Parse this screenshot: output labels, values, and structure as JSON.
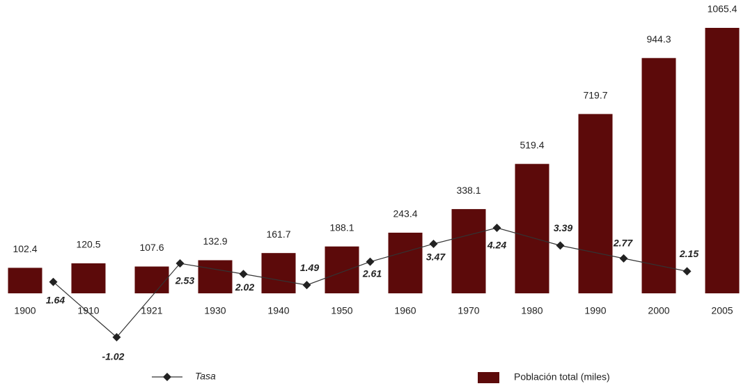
{
  "chart_data": {
    "type": "bar",
    "categories": [
      "1900",
      "1910",
      "1921",
      "1930",
      "1940",
      "1950",
      "1960",
      "1970",
      "1980",
      "1990",
      "2000",
      "2005"
    ],
    "series": [
      {
        "name": "Población total (miles)",
        "type": "bar",
        "color": "#5c0a0a",
        "values": [
          102.4,
          120.5,
          107.6,
          132.9,
          161.7,
          188.1,
          243.4,
          338.1,
          519.4,
          719.7,
          944.3,
          1065.4
        ]
      },
      {
        "name": "Tasa",
        "type": "line",
        "color": "#333333",
        "values": [
          null,
          1.64,
          -1.02,
          2.53,
          2.02,
          1.49,
          2.61,
          3.47,
          4.24,
          3.39,
          2.77,
          2.15
        ]
      }
    ]
  }
}
